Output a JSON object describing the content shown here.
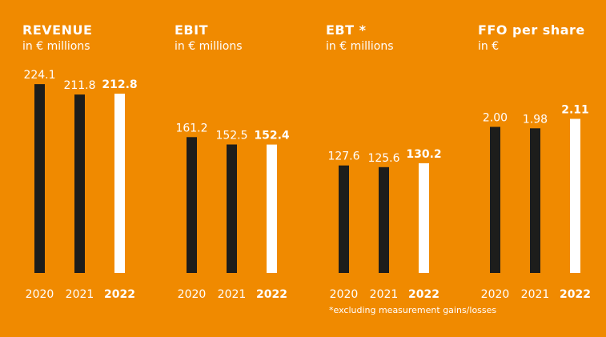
{
  "footnote": "*excluding measurement gains/losses",
  "colors": {
    "background": "#F08A00",
    "prior_bar": "#1D1D1B",
    "current_bar": "#FFFFFF",
    "prior_label": "#FFFFFF",
    "current_label": "#FFFFFF"
  },
  "chart_data": [
    {
      "type": "bar",
      "title": "REVENUE",
      "subtitle": "in € millions",
      "categories": [
        "2020",
        "2021",
        "2022"
      ],
      "values": [
        224.1,
        211.8,
        212.8
      ],
      "value_labels": [
        "224.1",
        "211.8",
        "212.8"
      ],
      "highlight_index": 2,
      "ylim": [
        0,
        228
      ],
      "grid": false,
      "xlabel": "",
      "ylabel": ""
    },
    {
      "type": "bar",
      "title": "EBIT",
      "subtitle": "in € millions",
      "categories": [
        "2020",
        "2021",
        "2022"
      ],
      "values": [
        161.2,
        152.5,
        152.4
      ],
      "value_labels": [
        "161.2",
        "152.5",
        "152.4"
      ],
      "highlight_index": 2,
      "ylim": [
        0,
        228
      ],
      "grid": false,
      "xlabel": "",
      "ylabel": ""
    },
    {
      "type": "bar",
      "title": "EBT *",
      "subtitle": "in € millions",
      "categories": [
        "2020",
        "2021",
        "2022"
      ],
      "values": [
        127.6,
        125.6,
        130.2
      ],
      "value_labels": [
        "127.6",
        "125.6",
        "130.2"
      ],
      "highlight_index": 2,
      "ylim": [
        0,
        228
      ],
      "grid": false,
      "xlabel": "",
      "ylabel": ""
    },
    {
      "type": "bar",
      "title": "FFO per share",
      "subtitle": "in €",
      "categories": [
        "2020",
        "2021",
        "2022"
      ],
      "values": [
        2.0,
        1.98,
        2.11
      ],
      "value_labels": [
        "2.00",
        "1.98",
        "2.11"
      ],
      "highlight_index": 2,
      "ylim": [
        0,
        2.63
      ],
      "grid": false,
      "xlabel": "",
      "ylabel": ""
    }
  ]
}
